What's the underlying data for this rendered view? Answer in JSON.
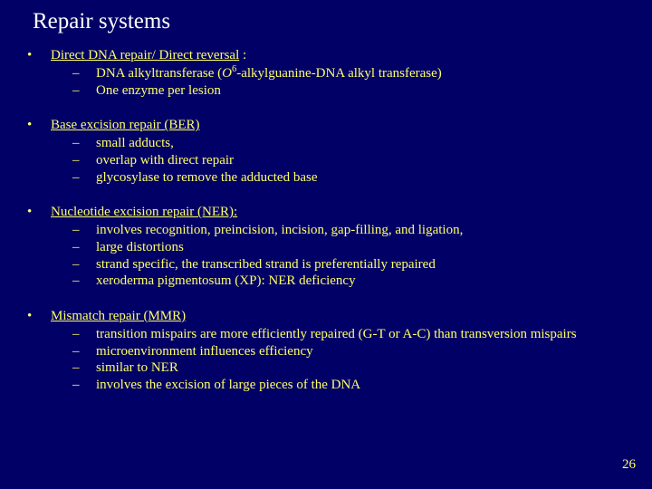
{
  "colors": {
    "background": "#000066",
    "title_color": "#ffffff",
    "body_color": "#ffff66"
  },
  "title": "Repair systems",
  "page_number": "26",
  "sections": [
    {
      "heading_pre": "Direct DNA repair/ Direct reversal",
      "heading_post": " :",
      "subs": [
        {
          "pre": "DNA alkyltransferase (",
          "italic": "O",
          "sup": "6",
          "post": "-alkylguanine-DNA alkyl transferase)"
        },
        {
          "text": "One enzyme per lesion"
        }
      ]
    },
    {
      "heading_pre": "Base excision repair (BER)",
      "heading_post": "",
      "subs": [
        {
          "text": "small adducts,"
        },
        {
          "text": "overlap with direct repair"
        },
        {
          "text": "glycosylase to remove the adducted base"
        }
      ]
    },
    {
      "heading_pre": "Nucleotide excision repair (NER):",
      "heading_post": "",
      "subs": [
        {
          "text": "involves recognition, preincision, incision, gap-filling, and ligation,"
        },
        {
          "text": "large distortions"
        },
        {
          "text": "strand specific, the transcribed strand is preferentially repaired"
        },
        {
          "text": "xeroderma pigmentosum (XP): NER deficiency"
        }
      ]
    },
    {
      "heading_pre": "Mismatch repair (MMR)",
      "heading_post": "",
      "subs": [
        {
          "text": "transition mispairs are more efficiently repaired (G-T or A-C) than transversion mispairs"
        },
        {
          "text": "microenvironment influences efficiency"
        },
        {
          "text": "similar to NER"
        },
        {
          "text": "involves the excision of large pieces of the DNA"
        }
      ]
    }
  ]
}
